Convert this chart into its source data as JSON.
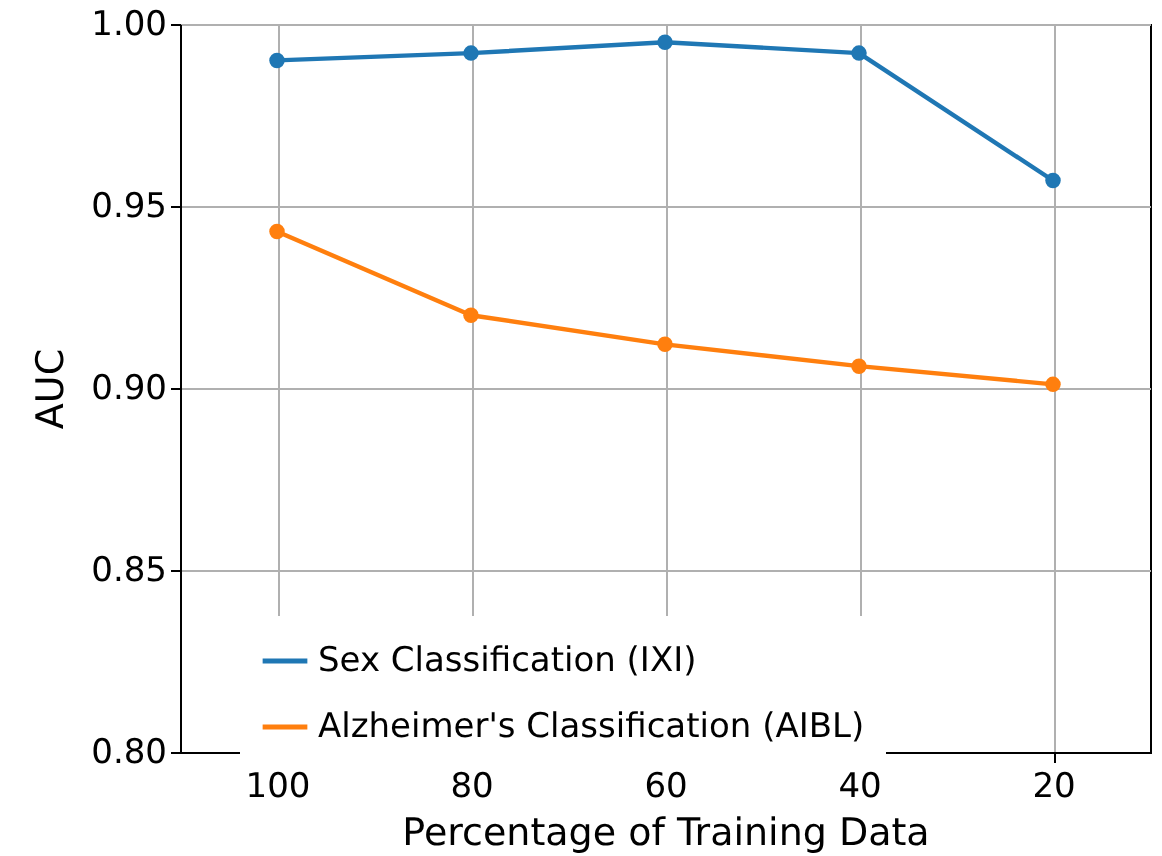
{
  "chart_data": {
    "type": "line",
    "xlabel": "Percentage of Training Data",
    "ylabel": "AUC",
    "categories": [
      "100",
      "80",
      "60",
      "40",
      "20"
    ],
    "series": [
      {
        "name": "Sex Classification (IXI)",
        "color": "#1f77b4",
        "values": [
          0.99,
          0.992,
          0.995,
          0.992,
          0.957
        ]
      },
      {
        "name": "Alzheimer's Classification (AIBL)",
        "color": "#ff7f0e",
        "values": [
          0.943,
          0.92,
          0.912,
          0.906,
          0.901
        ]
      }
    ],
    "ylim": [
      0.8,
      1.0
    ],
    "yticks": [
      {
        "value": 0.8,
        "label": "0.80"
      },
      {
        "value": 0.85,
        "label": "0.85"
      },
      {
        "value": 0.9,
        "label": "0.90"
      },
      {
        "value": 0.95,
        "label": "0.95"
      },
      {
        "value": 1.0,
        "label": "1.00"
      }
    ],
    "grid": true,
    "legend": "bottom",
    "marker": "circle",
    "line_style": "solid"
  }
}
